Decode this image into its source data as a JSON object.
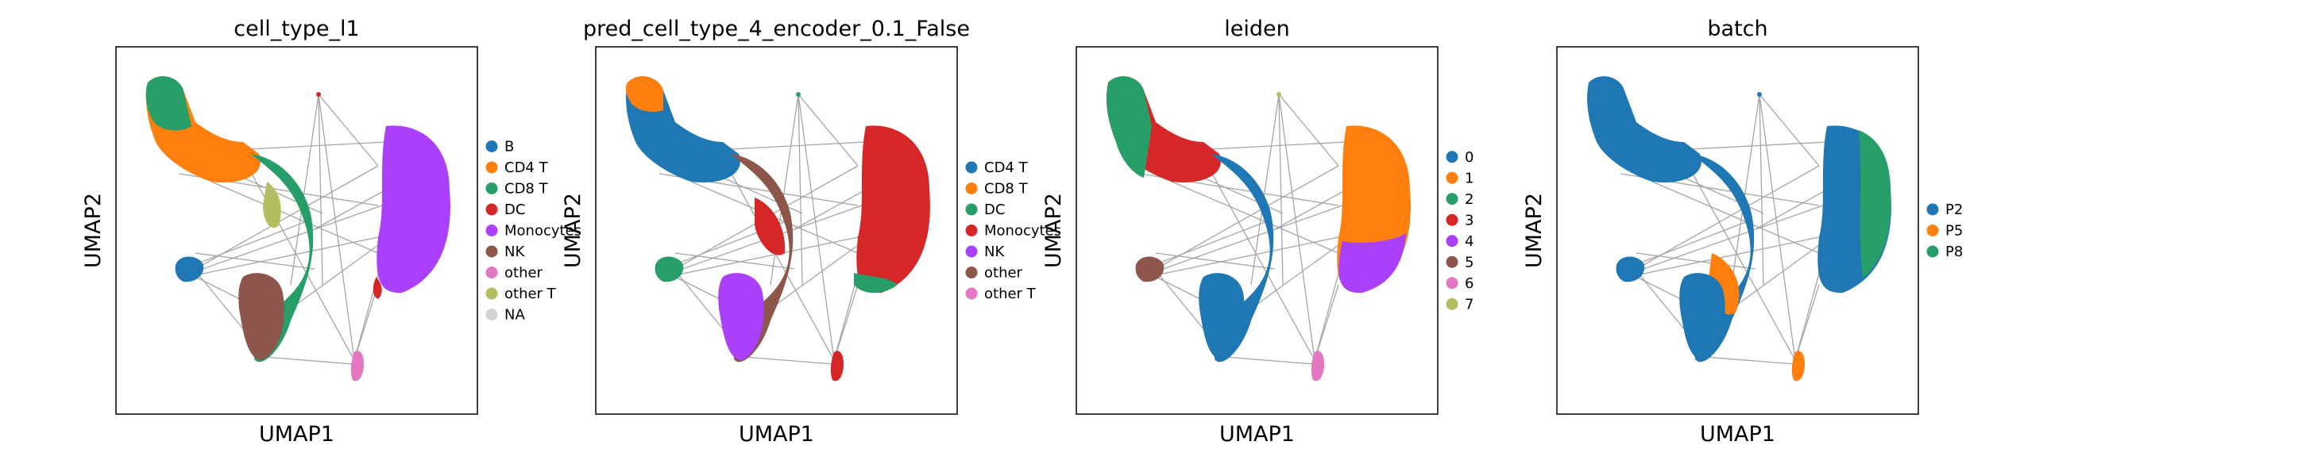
{
  "chart_data": [
    {
      "type": "scatter",
      "title": "cell_type_l1",
      "xlabel": "UMAP1",
      "ylabel": "UMAP2",
      "grid": false,
      "legend": "right",
      "legend_entries": [
        {
          "label": "B",
          "color": "#1f77b4"
        },
        {
          "label": "CD4 T",
          "color": "#ff7f0e"
        },
        {
          "label": "CD8 T",
          "color": "#279e68"
        },
        {
          "label": "DC",
          "color": "#d62728"
        },
        {
          "label": "Monocytes",
          "color": "#aa40fc"
        },
        {
          "label": "NK",
          "color": "#8c564b"
        },
        {
          "label": "other",
          "color": "#e377c2"
        },
        {
          "label": "other T",
          "color": "#b5bd61"
        },
        {
          "label": "NA",
          "color": "#d3d3d3"
        }
      ],
      "clusters": [
        {
          "label": "CD8 T",
          "x": 0.13,
          "y": 0.84
        },
        {
          "label": "CD4 T",
          "x": 0.25,
          "y": 0.69
        },
        {
          "label": "other T",
          "x": 0.45,
          "y": 0.54
        },
        {
          "label": "CD8 T",
          "x": 0.51,
          "y": 0.44
        },
        {
          "label": "B",
          "x": 0.2,
          "y": 0.38
        },
        {
          "label": "NK",
          "x": 0.45,
          "y": 0.25
        },
        {
          "label": "Monocytes",
          "x": 0.84,
          "y": 0.58
        },
        {
          "label": "DC",
          "x": 0.73,
          "y": 0.32
        },
        {
          "label": "other",
          "x": 0.67,
          "y": 0.12
        },
        {
          "label": "DC",
          "x": 0.56,
          "y": 0.87
        }
      ]
    },
    {
      "type": "scatter",
      "title": "pred_cell_type_4_encoder_0.1_False",
      "xlabel": "UMAP1",
      "ylabel": "UMAP2",
      "grid": false,
      "legend": "right",
      "legend_entries": [
        {
          "label": "CD4 T",
          "color": "#1f77b4"
        },
        {
          "label": "CD8 T",
          "color": "#ff7f0e"
        },
        {
          "label": "DC",
          "color": "#279e68"
        },
        {
          "label": "Monocytes",
          "color": "#d62728"
        },
        {
          "label": "NK",
          "color": "#aa40fc"
        },
        {
          "label": "other",
          "color": "#8c564b"
        },
        {
          "label": "other T",
          "color": "#e377c2"
        }
      ],
      "clusters": [
        {
          "label": "CD8 T",
          "x": 0.12,
          "y": 0.86
        },
        {
          "label": "CD4 T",
          "x": 0.2,
          "y": 0.7
        },
        {
          "label": "other",
          "x": 0.4,
          "y": 0.5
        },
        {
          "label": "NK",
          "x": 0.38,
          "y": 0.28
        },
        {
          "label": "DC",
          "x": 0.2,
          "y": 0.38
        },
        {
          "label": "Monocytes",
          "x": 0.84,
          "y": 0.58
        },
        {
          "label": "DC",
          "x": 0.77,
          "y": 0.32
        },
        {
          "label": "Monocytes",
          "x": 0.67,
          "y": 0.12
        }
      ]
    },
    {
      "type": "scatter",
      "title": "leiden",
      "xlabel": "UMAP1",
      "ylabel": "UMAP2",
      "grid": false,
      "legend": "right",
      "legend_entries": [
        {
          "label": "0",
          "color": "#1f77b4"
        },
        {
          "label": "1",
          "color": "#ff7f0e"
        },
        {
          "label": "2",
          "color": "#279e68"
        },
        {
          "label": "3",
          "color": "#d62728"
        },
        {
          "label": "4",
          "color": "#aa40fc"
        },
        {
          "label": "5",
          "color": "#8c564b"
        },
        {
          "label": "6",
          "color": "#e377c2"
        },
        {
          "label": "7",
          "color": "#b5bd61"
        }
      ],
      "clusters": [
        {
          "label": "2",
          "x": 0.14,
          "y": 0.8
        },
        {
          "label": "3",
          "x": 0.4,
          "y": 0.65
        },
        {
          "label": "0",
          "x": 0.42,
          "y": 0.35
        },
        {
          "label": "5",
          "x": 0.2,
          "y": 0.38
        },
        {
          "label": "1",
          "x": 0.84,
          "y": 0.62
        },
        {
          "label": "4",
          "x": 0.82,
          "y": 0.38
        },
        {
          "label": "6",
          "x": 0.67,
          "y": 0.12
        },
        {
          "label": "7",
          "x": 0.56,
          "y": 0.87
        }
      ]
    },
    {
      "type": "scatter",
      "title": "batch",
      "xlabel": "UMAP1",
      "ylabel": "UMAP2",
      "grid": false,
      "legend": "right",
      "legend_entries": [
        {
          "label": "P2",
          "color": "#1f77b4"
        },
        {
          "label": "P5",
          "color": "#ff7f0e"
        },
        {
          "label": "P8",
          "color": "#279e68"
        }
      ],
      "clusters": [
        {
          "label": "P2",
          "x": 0.2,
          "y": 0.75
        },
        {
          "label": "P2",
          "x": 0.4,
          "y": 0.45
        },
        {
          "label": "P5",
          "x": 0.5,
          "y": 0.3
        },
        {
          "label": "P8",
          "x": 0.84,
          "y": 0.6
        },
        {
          "label": "P2",
          "x": 0.8,
          "y": 0.4
        }
      ]
    }
  ]
}
